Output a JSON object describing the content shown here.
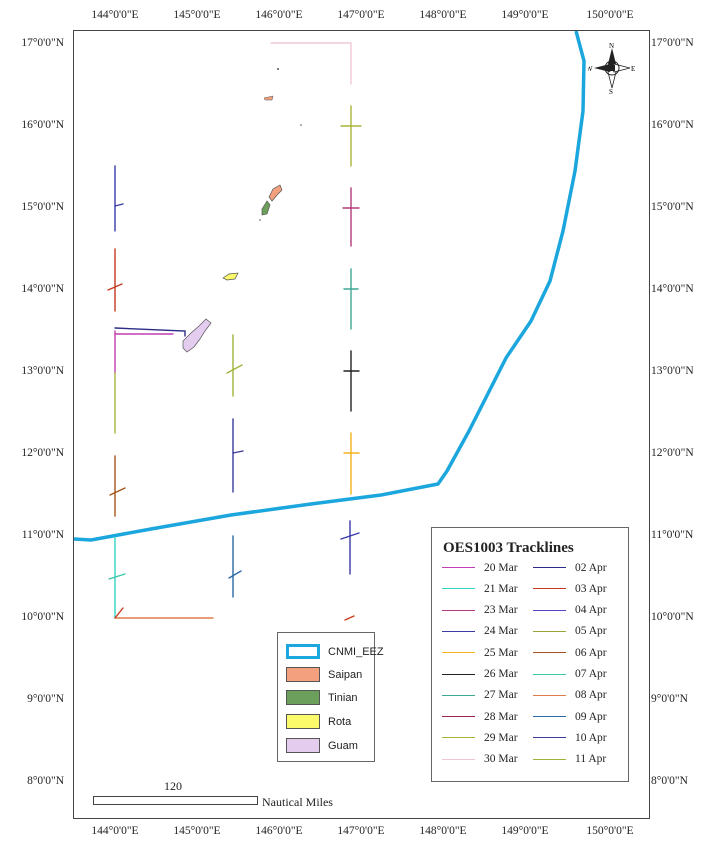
{
  "map": {
    "lon_labels": [
      "144°0'0\"E",
      "145°0'0\"E",
      "146°0'0\"E",
      "147°0'0\"E",
      "148°0'0\"E",
      "149°0'0\"E",
      "150°0'0\"E"
    ],
    "lat_labels": [
      "17°0'0\"N",
      "16°0'0\"N",
      "15°0'0\"N",
      "14°0'0\"N",
      "13°0'0\"N",
      "12°0'0\"N",
      "11°0'0\"N",
      "10°0'0\"N",
      "9°0'0\"N",
      "8°0'0\"N"
    ],
    "colors": {
      "eez": "#1ba7dd",
      "saipan": "#f2a07e",
      "tinian": "#6c9f5c",
      "rota": "#fbfa6b",
      "guam": "#e4ccef"
    }
  },
  "compass": {
    "n": "N",
    "s": "S",
    "e": "E",
    "w": "W"
  },
  "feature_legend": {
    "items": [
      {
        "label": "CNMI_EEZ",
        "color": "#1ba7dd"
      },
      {
        "label": "Saipan",
        "color": "#f2a07e"
      },
      {
        "label": "Tinian",
        "color": "#6c9f5c"
      },
      {
        "label": "Rota",
        "color": "#fbfa6b"
      },
      {
        "label": "Guam",
        "color": "#e4ccef"
      }
    ]
  },
  "track_legend": {
    "title": "OES1003 Tracklines",
    "left": [
      {
        "label": "20 Mar",
        "color": "#c13fb2"
      },
      {
        "label": "21 Mar",
        "color": "#32d4c4"
      },
      {
        "label": "23 Mar",
        "color": "#b33a7e"
      },
      {
        "label": "24 Mar",
        "color": "#3a3aa8"
      },
      {
        "label": "25 Mar",
        "color": "#f4b21c"
      },
      {
        "label": "26 Mar",
        "color": "#222222"
      },
      {
        "label": "27 Mar",
        "color": "#3ea895"
      },
      {
        "label": "28 Mar",
        "color": "#9b2448"
      },
      {
        "label": "29 Mar",
        "color": "#a9b53a"
      },
      {
        "label": "30 Mar",
        "color": "#f2c7d5"
      }
    ],
    "right": [
      {
        "label": "02 Apr",
        "color": "#2c2c88"
      },
      {
        "label": "03 Apr",
        "color": "#c43a1e"
      },
      {
        "label": "04 Apr",
        "color": "#5a3fbf"
      },
      {
        "label": "05 Apr",
        "color": "#9aa43a"
      },
      {
        "label": "06 Apr",
        "color": "#a3541c"
      },
      {
        "label": "07 Apr",
        "color": "#38c9a8"
      },
      {
        "label": "08 Apr",
        "color": "#e07c4a"
      },
      {
        "label": "09 Apr",
        "color": "#2b6aa8"
      },
      {
        "label": "10 Apr",
        "color": "#3a3a9a"
      },
      {
        "label": "11 Apr",
        "color": "#9fb33a"
      }
    ]
  },
  "scale": {
    "value": "120",
    "unit": "Nautical Miles"
  }
}
